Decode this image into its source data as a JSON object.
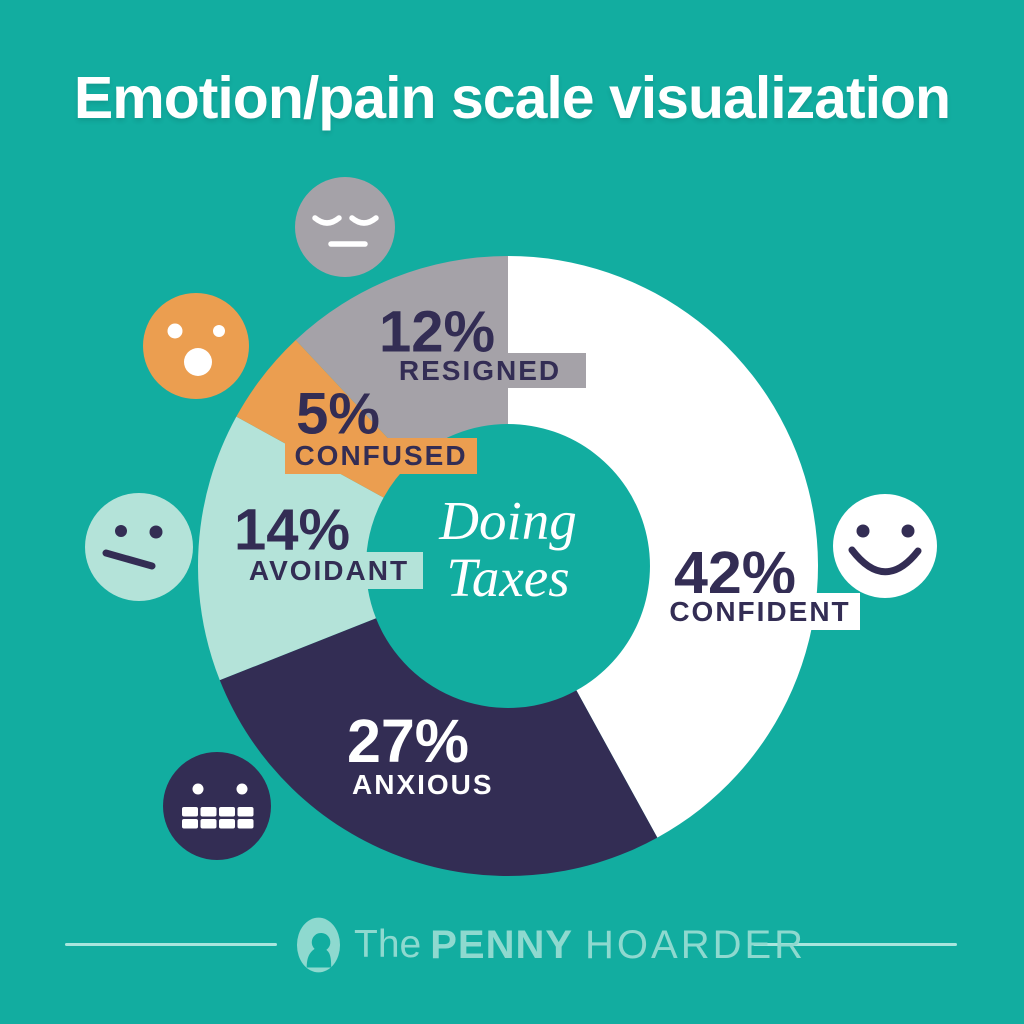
{
  "title": "Emotion/pain scale visualization",
  "palette": {
    "teal": "#12ada0",
    "navy": "#332d54",
    "white": "#ffffff",
    "mint": "#b4e3d9",
    "orange": "#eb9e50",
    "gray": "#a5a2a8",
    "pale_mint": "#8ed9cf",
    "pale_line": "#a9e6de"
  },
  "chart_data": {
    "type": "donut",
    "title": "Doing Taxes",
    "center_label_lines": [
      "Doing",
      "Taxes"
    ],
    "start_angle_deg": 0,
    "direction": "clockwise",
    "donut_hole_ratio": 0.458,
    "segments": [
      {
        "label": "CONFIDENT",
        "pct_text": "42%",
        "value": 42,
        "color": "white",
        "face": "smiling-face"
      },
      {
        "label": "ANXIOUS",
        "pct_text": "27%",
        "value": 27,
        "color": "navy",
        "face": "gritted-teeth-face"
      },
      {
        "label": "AVOIDANT",
        "pct_text": "14%",
        "value": 14,
        "color": "mint",
        "face": "neutral-slant-mouth-face"
      },
      {
        "label": "CONFUSED",
        "pct_text": "5%",
        "value": 5,
        "color": "orange",
        "face": "surprised-open-mouth-face"
      },
      {
        "label": "RESIGNED",
        "pct_text": "12%",
        "value": 12,
        "color": "gray",
        "face": "closed-eyes-flat-mouth-face"
      }
    ]
  },
  "footer": {
    "the": "The",
    "penny": "PENNY",
    "hoarder": "HOARDER"
  }
}
